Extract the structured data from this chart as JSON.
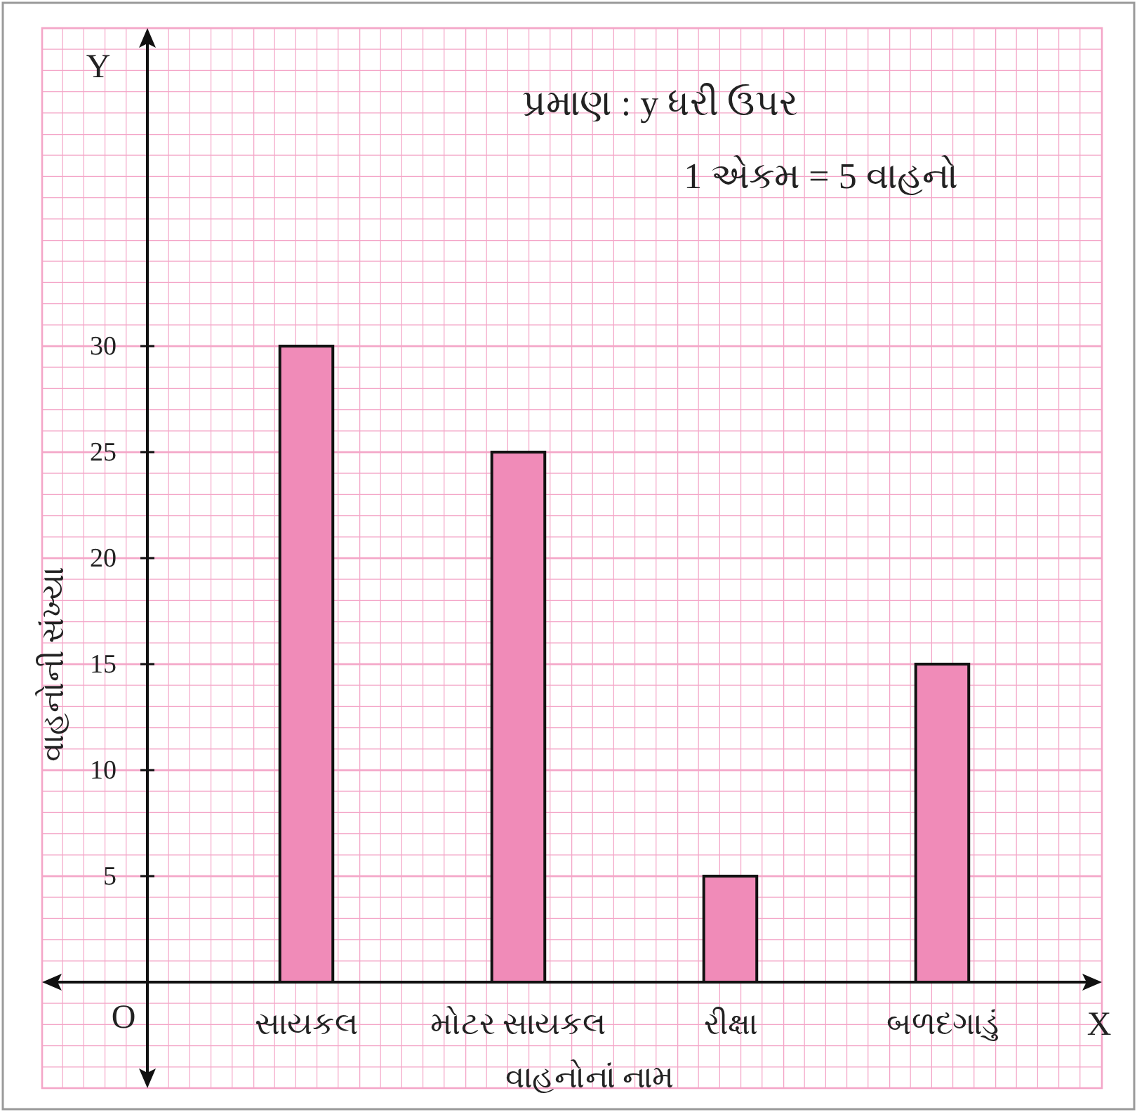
{
  "chart_data": {
    "type": "bar",
    "xlabel": "વાહનોનાં નામ",
    "ylabel": "વાહનોની સંખ્યા",
    "categories": [
      "સાયકલ",
      "મોટર સાયકલ",
      "રીક્ષા",
      "બળદગાડું"
    ],
    "values": [
      30,
      25,
      5,
      15
    ],
    "color": "#f08bb8",
    "ylim": [
      -5,
      45
    ],
    "yticks": [
      5,
      10,
      15,
      20,
      25,
      30
    ],
    "grid": true,
    "annotations": [
      "પ્રમાણ : y ધરી ઉપર",
      "1 એકમ = 5 વાહનો",
      "Y",
      "X",
      "O"
    ]
  }
}
